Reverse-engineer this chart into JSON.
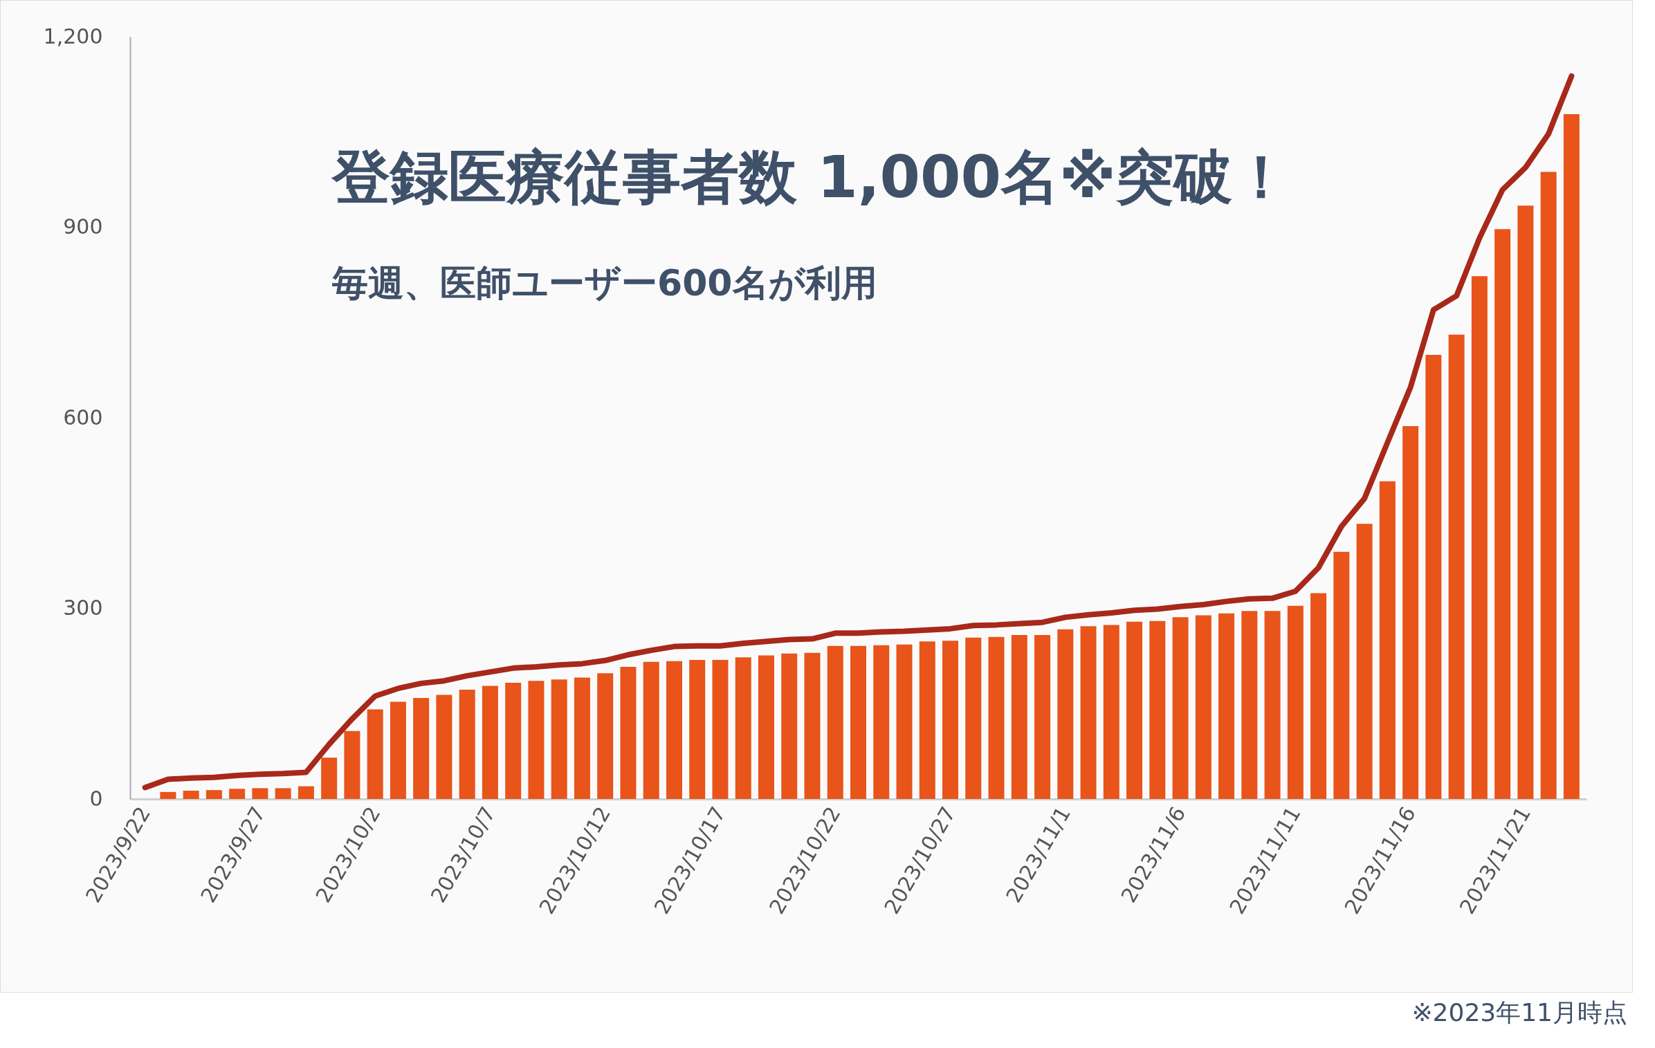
{
  "chart_data": {
    "type": "bar",
    "title": "登録医療従事者数 1,000名※突破！",
    "subtitle": "毎週、医師ユーザー600名が利用",
    "annotations": [
      "※2023年11月時点"
    ],
    "x": [
      "2023-09-22",
      "2023-09-23",
      "2023-09-24",
      "2023-09-25",
      "2023-09-26",
      "2023-09-27",
      "2023-09-28",
      "2023-09-29",
      "2023-09-30",
      "2023-10-01",
      "2023-10-02",
      "2023-10-03",
      "2023-10-04",
      "2023-10-05",
      "2023-10-06",
      "2023-10-07",
      "2023-10-08",
      "2023-10-09",
      "2023-10-10",
      "2023-10-11",
      "2023-10-12",
      "2023-10-13",
      "2023-10-14",
      "2023-10-15",
      "2023-10-16",
      "2023-10-17",
      "2023-10-18",
      "2023-10-19",
      "2023-10-20",
      "2023-10-21",
      "2023-10-22",
      "2023-10-23",
      "2023-10-24",
      "2023-10-25",
      "2023-10-26",
      "2023-10-27",
      "2023-10-28",
      "2023-10-29",
      "2023-10-30",
      "2023-10-31",
      "2023-11-01",
      "2023-11-02",
      "2023-11-03",
      "2023-11-04",
      "2023-11-05",
      "2023-11-06",
      "2023-11-07",
      "2023-11-08",
      "2023-11-09",
      "2023-11-10",
      "2023-11-11",
      "2023-11-12",
      "2023-11-13",
      "2023-11-14",
      "2023-11-15",
      "2023-11-16",
      "2023-11-17",
      "2023-11-18",
      "2023-11-19",
      "2023-11-20",
      "2023-11-21",
      "2023-11-22",
      "2023-11-23"
    ],
    "series": [
      {
        "color": "#e8541a",
        "values": [
          null,
          11,
          13,
          14,
          16,
          17,
          17,
          20,
          65,
          107,
          141,
          153,
          159,
          164,
          172,
          178,
          183,
          186,
          188,
          191,
          198,
          208,
          216,
          217,
          219,
          219,
          223,
          226,
          229,
          230,
          241,
          241,
          242,
          243,
          248,
          249,
          254,
          255,
          258,
          258,
          267,
          272,
          274,
          279,
          280,
          286,
          289,
          292,
          296,
          296,
          304,
          324,
          389,
          433,
          500,
          587,
          699,
          731,
          823,
          897,
          934,
          987,
          1078
        ]
      },
      {
        "type": "line",
        "color": "#a8281a",
        "values": [
          18,
          31,
          33,
          34,
          37,
          39,
          40,
          42,
          86,
          126,
          162,
          174,
          182,
          186,
          194,
          200,
          206,
          208,
          211,
          213,
          218,
          227,
          234,
          240,
          241,
          241,
          245,
          248,
          251,
          252,
          261,
          261,
          263,
          264,
          266,
          268,
          273,
          274,
          276,
          278,
          286,
          290,
          293,
          297,
          299,
          303,
          306,
          311,
          315,
          316,
          327,
          364,
          429,
          473,
          561,
          648,
          770,
          792,
          883,
          959,
          994,
          1047,
          1138
        ]
      }
    ],
    "xlim": [
      "2023-09-21T12:00",
      "2023-11-23T12:00"
    ],
    "xticks": [
      {
        "value": "2023-09-22",
        "label": "2023/9/22"
      },
      {
        "value": "2023-09-27",
        "label": "2023/9/27"
      },
      {
        "value": "2023-10-02",
        "label": "2023/10/2"
      },
      {
        "value": "2023-10-07",
        "label": "2023/10/7"
      },
      {
        "value": "2023-10-12",
        "label": "2023/10/12"
      },
      {
        "value": "2023-10-17",
        "label": "2023/10/17"
      },
      {
        "value": "2023-10-22",
        "label": "2023/10/22"
      },
      {
        "value": "2023-10-27",
        "label": "2023/10/27"
      },
      {
        "value": "2023-11-01",
        "label": "2023/11/1"
      },
      {
        "value": "2023-11-06",
        "label": "2023/11/6"
      },
      {
        "value": "2023-11-11",
        "label": "2023/11/11"
      },
      {
        "value": "2023-11-16",
        "label": "2023/11/16"
      },
      {
        "value": "2023-11-21",
        "label": "2023/11/21"
      }
    ],
    "ylim": [
      0,
      1200
    ],
    "yticks": [
      0,
      {
        "value": 300,
        "label": "300"
      },
      {
        "value": 600,
        "label": "600"
      },
      {
        "value": 900,
        "label": "900"
      },
      {
        "value": 1200,
        "label": "1,200"
      }
    ]
  }
}
